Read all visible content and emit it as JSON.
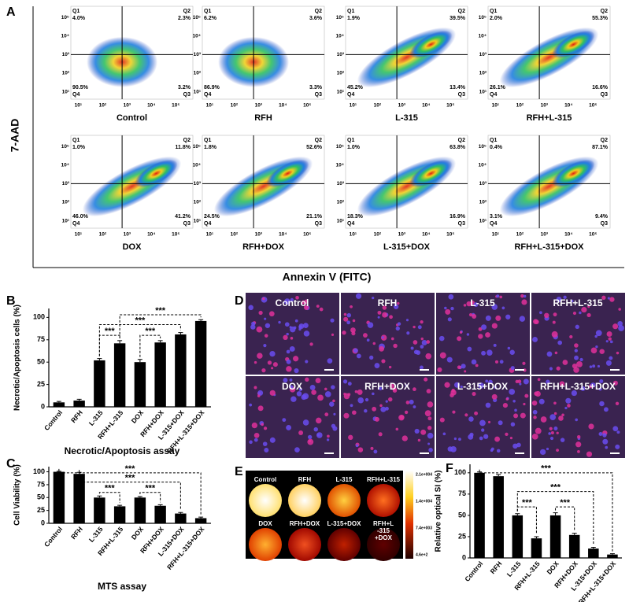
{
  "panel_labels": [
    "A",
    "B",
    "C",
    "D",
    "E",
    "F"
  ],
  "panels": {
    "A": {
      "y_label": "7-AAD",
      "x_label": "Annexin V (FITC)",
      "axis_ticks": [
        "10¹",
        "10²",
        "10³",
        "10⁴",
        "10⁵"
      ],
      "quadrants": [
        "Q1",
        "Q2",
        "Q3",
        "Q4"
      ],
      "plots": [
        {
          "name": "Control",
          "q1": "4.0%",
          "q2": "2.3%",
          "q3": "3.2%",
          "q4": "90.5%"
        },
        {
          "name": "RFH",
          "q1": "6.2%",
          "q2": "3.6%",
          "q3": "3.3%",
          "q4": "86.9%"
        },
        {
          "name": "L-315",
          "q1": "1.9%",
          "q2": "39.5%",
          "q3": "13.4%",
          "q4": "45.2%"
        },
        {
          "name": "RFH+L-315",
          "q1": "2.0%",
          "q2": "55.3%",
          "q3": "16.6%",
          "q4": "26.1%"
        },
        {
          "name": "DOX",
          "q1": "1.0%",
          "q2": "11.8%",
          "q3": "41.2%",
          "q4": "46.0%"
        },
        {
          "name": "RFH+DOX",
          "q1": "1.8%",
          "q2": "52.6%",
          "q3": "21.1%",
          "q4": "24.5%"
        },
        {
          "name": "L-315+DOX",
          "q1": "1.0%",
          "q2": "63.8%",
          "q3": "16.9%",
          "q4": "18.3%"
        },
        {
          "name": "RFH+L-315+DOX",
          "q1": "0.4%",
          "q2": "87.1%",
          "q3": "9.4%",
          "q4": "3.1%"
        }
      ]
    },
    "D": {
      "labels": [
        "Control",
        "RFH",
        "L-315",
        "RFH+L-315",
        "DOX",
        "RFH+DOX",
        "L-315+DOX",
        "RFH+L-315+DOX"
      ]
    },
    "E": {
      "labels": [
        [
          "Control"
        ],
        [
          "RFH"
        ],
        [
          "L-315"
        ],
        [
          "RFH+L-315"
        ],
        [
          "DOX"
        ],
        [
          "RFH+DOX"
        ],
        [
          "L-315+DOX"
        ],
        [
          "RFH+L",
          "-315",
          "+DOX"
        ]
      ],
      "colorbar": [
        "2.1e+004",
        "1.4e+004",
        "7.4e+003",
        "4.6e+2"
      ]
    }
  },
  "chart_data": [
    {
      "type": "bar",
      "ylabel": "Necrotic/Apoptosis cells (%)",
      "xlabel": "Necrotic/Apoptosis assay",
      "categories": [
        "Control",
        "RFH",
        "L-315",
        "RFH+L-315",
        "DOX",
        "RFH+DOX",
        "L-315+DOX",
        "RFH+L-315+DOX"
      ],
      "values": [
        5,
        7,
        52,
        71,
        50,
        72,
        81,
        96
      ],
      "errors": [
        1,
        1.5,
        2,
        3,
        3,
        2,
        2,
        1.5
      ],
      "color": "#000000",
      "ylim": [
        0,
        110
      ],
      "yticks": [
        0,
        25,
        50,
        75,
        100
      ],
      "annotations": [
        "***",
        "***",
        "***",
        "***"
      ]
    },
    {
      "type": "bar",
      "ylabel": "Cell Viability (%)",
      "xlabel": "MTS assay",
      "categories": [
        "Control",
        "RFH",
        "L-315",
        "RFH+L-315",
        "DOX",
        "RFH+DOX",
        "L-315+DOX",
        "RFH+L-315+DOX"
      ],
      "values": [
        100,
        96,
        50,
        33,
        50,
        34,
        19,
        10
      ],
      "errors": [
        1,
        3,
        3,
        2,
        2,
        2,
        2,
        2
      ],
      "color": "#000000",
      "ylim": [
        0,
        110
      ],
      "yticks": [
        0,
        25,
        50,
        75,
        100
      ],
      "annotations": [
        "***",
        "***",
        "***",
        "***"
      ]
    },
    {
      "type": "bar",
      "ylabel": "Relative optical SI (%)",
      "categories": [
        "Control",
        "RFH",
        "L-315",
        "RFH+L-315",
        "DOX",
        "RFH+DOX",
        "L-315+DOX",
        "RFH+L-315+DOX"
      ],
      "values": [
        100,
        96,
        50,
        23,
        50,
        27,
        11,
        4
      ],
      "errors": [
        1,
        2,
        2,
        2,
        3,
        2,
        1.5,
        1
      ],
      "color": "#000000",
      "ylim": [
        0,
        110
      ],
      "yticks": [
        0,
        25,
        50,
        75,
        100
      ],
      "annotations": [
        "***",
        "***",
        "***",
        "***"
      ]
    }
  ]
}
